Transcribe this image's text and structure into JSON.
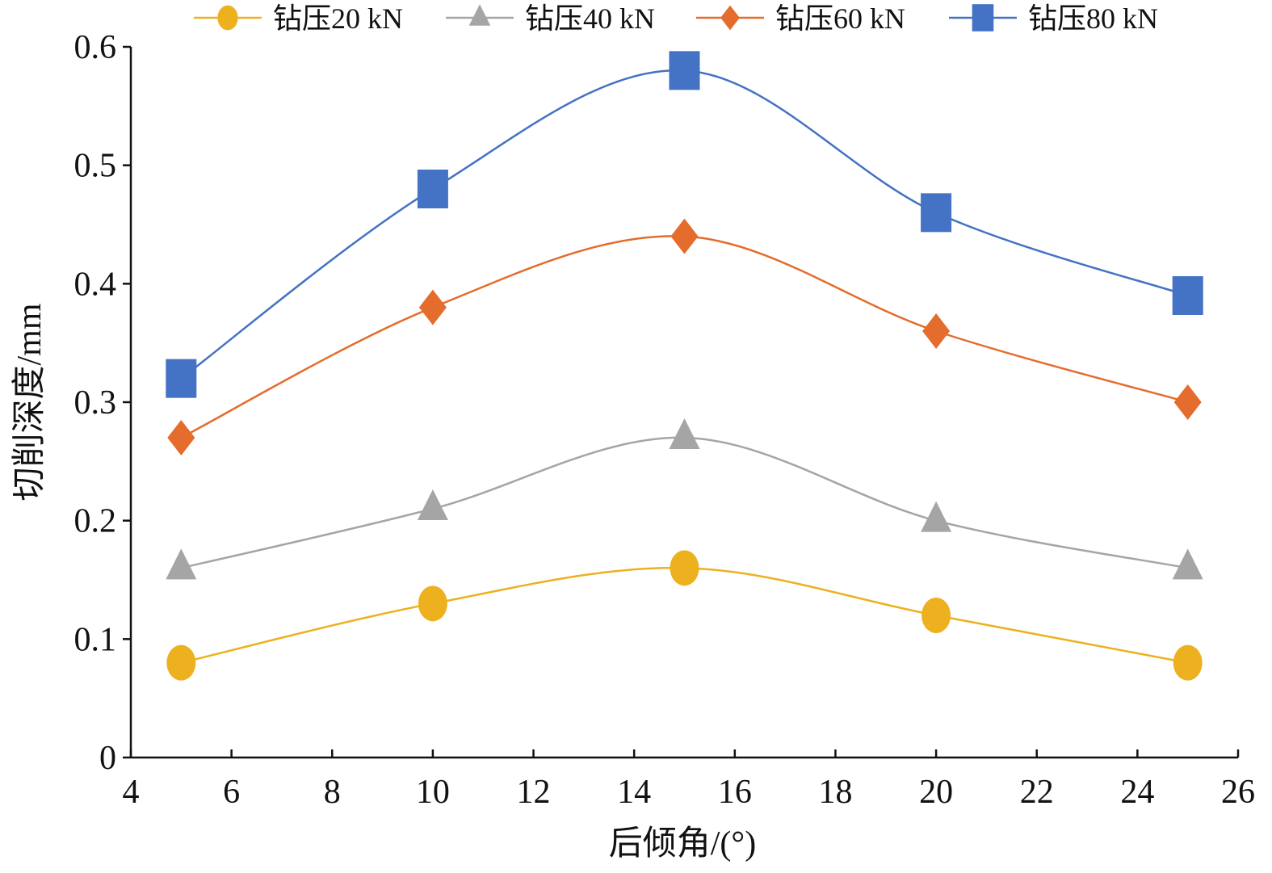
{
  "chart_data": {
    "type": "line",
    "title": "",
    "xlabel": "后倾角/(°)",
    "ylabel": "切削深度/mm",
    "xlim": [
      4,
      26
    ],
    "ylim": [
      0,
      0.6
    ],
    "xticks": [
      "4",
      "6",
      "8",
      "10",
      "12",
      "14",
      "16",
      "18",
      "20",
      "22",
      "24",
      "26"
    ],
    "yticks": [
      "0",
      "0.1",
      "0.2",
      "0.3",
      "0.4",
      "0.5",
      "0.6"
    ],
    "grid": false,
    "legend_position": "top",
    "x": [
      5,
      10,
      15,
      20,
      25
    ],
    "series": [
      {
        "name": "钻压20 kN",
        "color": "#EDB120",
        "marker": "circle",
        "values": [
          0.08,
          0.13,
          0.16,
          0.12,
          0.08
        ]
      },
      {
        "name": "钻压40 kN",
        "color": "#A5A5A5",
        "marker": "triangle",
        "values": [
          0.16,
          0.21,
          0.27,
          0.2,
          0.16
        ]
      },
      {
        "name": "钻压60 kN",
        "color": "#E46C2C",
        "marker": "diamond",
        "values": [
          0.27,
          0.38,
          0.44,
          0.36,
          0.3
        ]
      },
      {
        "name": "钻压80 kN",
        "color": "#4472C4",
        "marker": "square",
        "values": [
          0.32,
          0.48,
          0.58,
          0.46,
          0.39
        ]
      }
    ]
  }
}
